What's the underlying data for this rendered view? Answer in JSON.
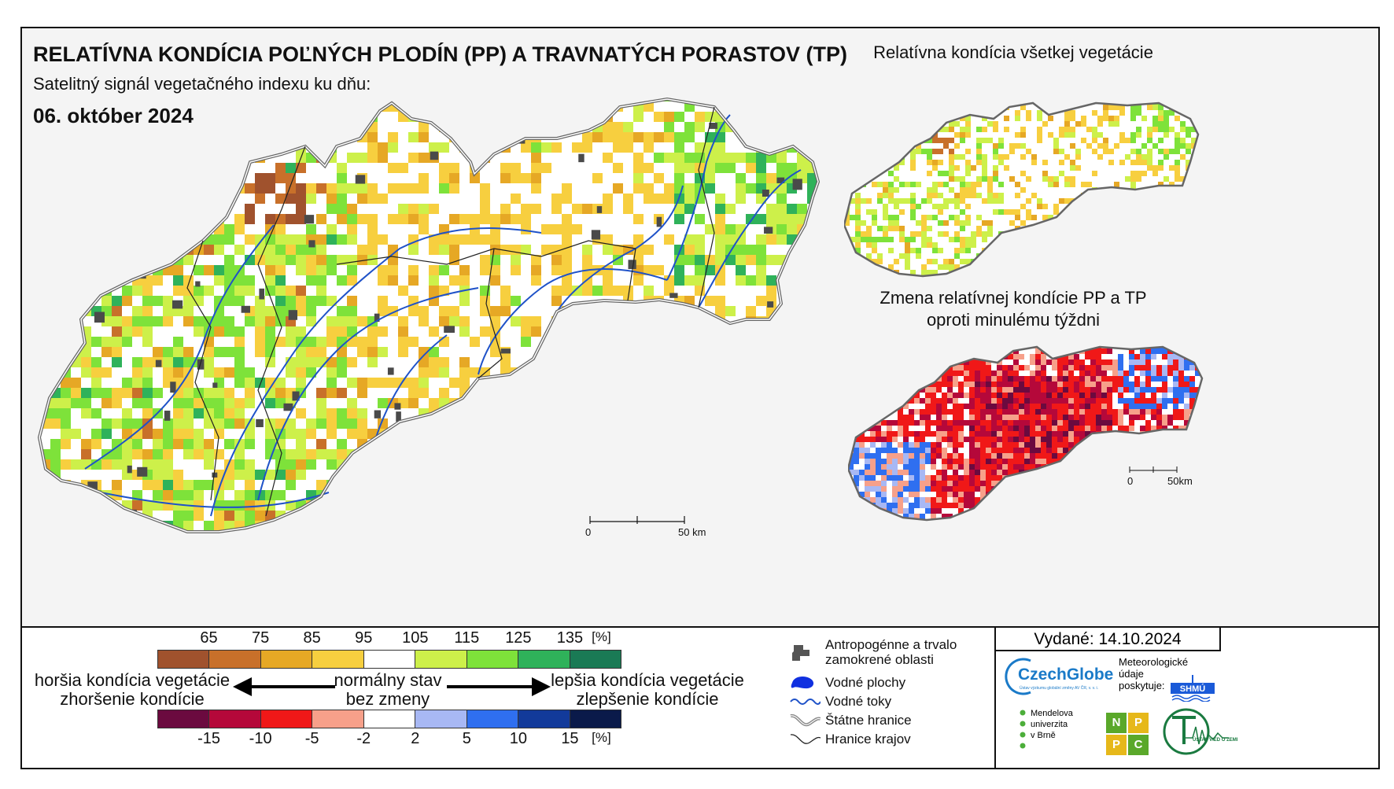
{
  "header": {
    "title": "RELATÍVNA KONDÍCIA POĽNÝCH PLODÍN (PP) A TRAVNATÝCH PORASTOV (TP)",
    "subtitle": "Satelitný signál vegetačného indexu ku dňu:",
    "date": "06. október 2024"
  },
  "panels": {
    "all_vegetation_title": "Relatívna kondícia všetkej vegetácie",
    "change_title_line1": "Zmena relatívnej kondície PP a TP",
    "change_title_line2": "oproti minulému týždni"
  },
  "scalebars": {
    "main": {
      "start": "0",
      "end": "50 km"
    },
    "inset": {
      "start": "0",
      "end": "50km"
    }
  },
  "legend_condition": {
    "ticks": [
      "65",
      "75",
      "85",
      "95",
      "105",
      "115",
      "125",
      "135"
    ],
    "unit": "[%]",
    "colors": [
      "#a0522d",
      "#c8702a",
      "#e6a825",
      "#f7cf3f",
      "#ffffff",
      "#cdf04a",
      "#7ee23a",
      "#2fb25a",
      "#1a7a55"
    ]
  },
  "legend_change": {
    "ticks": [
      "-15",
      "-10",
      "-5",
      "-2",
      "2",
      "5",
      "10",
      "15"
    ],
    "unit": "[%]",
    "colors": [
      "#6b0a3f",
      "#b5083a",
      "#f01818",
      "#f7a08a",
      "#ffffff",
      "#a8b8f4",
      "#2f6ff0",
      "#123a9a",
      "#0a1a4a"
    ]
  },
  "legend_text": {
    "worse_line1": "horšia kondícia vegetácie",
    "worse_line2": "zhoršenie kondície",
    "normal_line1": "normálny stav",
    "normal_line2": "bez zmeny",
    "better_line1": "lepšia kondícia vegetácie",
    "better_line2": "zlepšenie kondície"
  },
  "symbols": [
    {
      "icon": "urban-area-icon",
      "label": "Antropogénne a trvalo\nzamokrené oblasti"
    },
    {
      "icon": "water-body-icon",
      "label": "Vodné plochy"
    },
    {
      "icon": "river-icon",
      "label": "Vodné toky"
    },
    {
      "icon": "state-border-icon",
      "label": "Štátne hranice"
    },
    {
      "icon": "region-border-icon",
      "label": "Hranice krajov"
    }
  ],
  "issued": "Vydané: 14.10.2024",
  "logos": {
    "czechglobe": "CzechGlobe",
    "czechglobe_sub": "Ústav výzkumu globální změny AV ČR, v. v. i.",
    "meteo_text": "Meteorologické\núdaje\nposkytuje:",
    "shmu": "SHMÚ",
    "mendel": "Mendelova\nuniverzita\nv Brně",
    "nppc": [
      "N",
      "P",
      "P",
      "C"
    ],
    "uvz": "ÚSTAV VIED O ZEMI"
  }
}
